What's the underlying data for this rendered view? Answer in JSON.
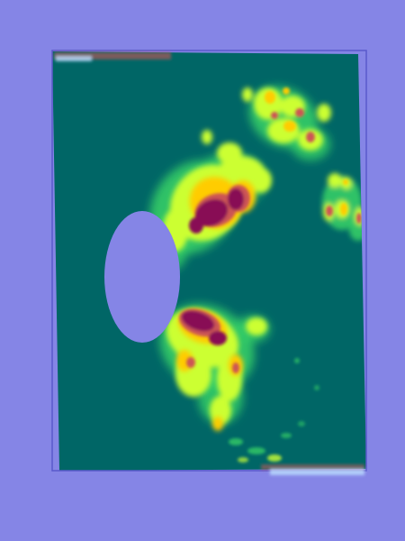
{
  "image": {
    "kind": "false-color heatmap visualization",
    "colors": {
      "page_background": "#8585e6",
      "field_background": "#006666",
      "frame_outline": "#5a5acc",
      "occluder": "#8585e6",
      "heat_low": "#33cc66",
      "heat_mid": "#ccff33",
      "heat_high": "#ffcc00",
      "heat_peak": "#cc5555",
      "heat_core": "#881155"
    },
    "regions": [
      "upper-right-cluster",
      "upper-wing-band",
      "lower-wing-band",
      "far-right-edge-blobs",
      "bottom-scatter",
      "top-edge-artifact",
      "bottom-edge-artifact"
    ]
  }
}
